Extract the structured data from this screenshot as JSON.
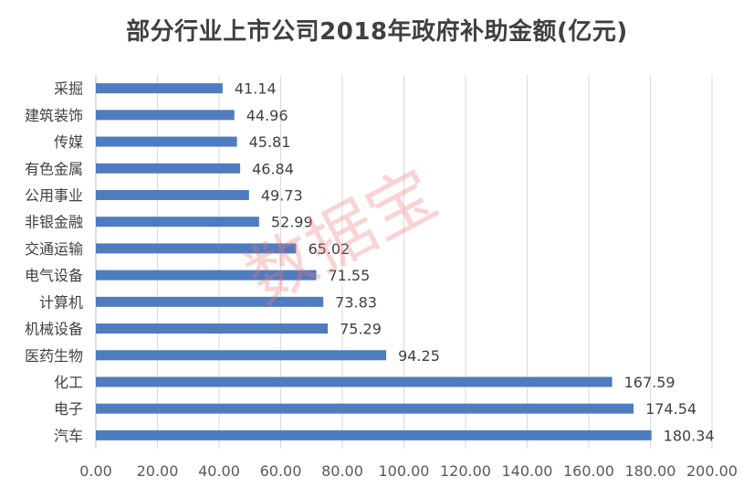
{
  "chart_data": {
    "type": "bar",
    "orientation": "horizontal",
    "title": "部分行业上市公司2018年政府补助金额(亿元)",
    "categories": [
      "采掘",
      "建筑装饰",
      "传媒",
      "有色金属",
      "公用事业",
      "非银金融",
      "交通运输",
      "电气设备",
      "计算机",
      "机械设备",
      "医药生物",
      "化工",
      "电子",
      "汽车"
    ],
    "values": [
      41.14,
      44.96,
      45.81,
      46.84,
      49.73,
      52.99,
      65.02,
      71.55,
      73.83,
      75.29,
      94.25,
      167.59,
      174.54,
      180.34
    ],
    "value_labels": [
      "41.14",
      "44.96",
      "45.81",
      "46.84",
      "49.73",
      "52.99",
      "65.02",
      "71.55",
      "73.83",
      "75.29",
      "94.25",
      "167.59",
      "174.54",
      "180.34"
    ],
    "xlim": [
      0,
      200
    ],
    "xticks": [
      0,
      20,
      40,
      60,
      80,
      100,
      120,
      140,
      160,
      180,
      200
    ],
    "xtick_labels": [
      "0.00",
      "20.00",
      "40.00",
      "60.00",
      "80.00",
      "100.00",
      "120.00",
      "140.00",
      "160.00",
      "180.00",
      "200.00"
    ],
    "xlabel": "",
    "ylabel": "",
    "grid": "vertical",
    "legend": "none",
    "bar_color": "#4f7bbf"
  },
  "watermark": "数据宝"
}
